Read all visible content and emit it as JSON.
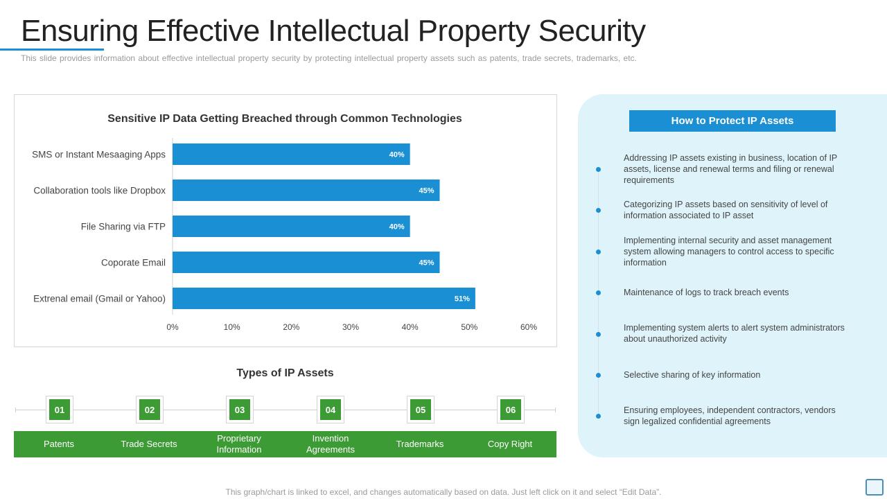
{
  "slide": {
    "title": "Ensuring Effective Intellectual Property Security",
    "subtitle": "This slide provides  information  about  effective  intellectual  property  security  by protecting  intellectual  property  assets such as patents,  trade  secrets,  trademarks,  etc.",
    "footer": "This graph/chart is linked to excel, and changes automatically based on data. Just left click on it and select “Edit Data”."
  },
  "chart_data": {
    "type": "bar",
    "orientation": "horizontal",
    "title": "Sensitive IP Data Getting Breached through Common Technologies",
    "categories": [
      "SMS or Instant Mesaaging Apps",
      "Collaboration tools like Dropbox",
      "File Sharing via FTP",
      "Coporate Email",
      "Extrenal email (Gmail or Yahoo)"
    ],
    "values": [
      40,
      45,
      40,
      45,
      51
    ],
    "value_labels": [
      "40%",
      "45%",
      "40%",
      "45%",
      "51%"
    ],
    "xlim": [
      0,
      60
    ],
    "xticks": [
      "0%",
      "10%",
      "20%",
      "30%",
      "40%",
      "50%",
      "60%"
    ],
    "xlabel": "",
    "ylabel": "",
    "grid": false,
    "bar_color": "#1a8fd3"
  },
  "types": {
    "title": "Types of IP Assets",
    "items": [
      {
        "number": "01",
        "label": "Patents"
      },
      {
        "number": "02",
        "label": "Trade Secrets"
      },
      {
        "number": "03",
        "label": "Proprietary Information"
      },
      {
        "number": "04",
        "label": "Invention Agreements"
      },
      {
        "number": "05",
        "label": "Trademarks"
      },
      {
        "number": "06",
        "label": "Copy Right"
      }
    ],
    "color": "#3d9b35"
  },
  "protect": {
    "title": "How to Protect IP Assets",
    "items": [
      "Addressing IP assets existing in business, location of IP assets, license and renewal terms and filing or renewal requirements",
      "Categorizing IP assets based on sensitivity of level of information associated to IP asset",
      "Implementing internal security and asset management system allowing managers to control access to specific information",
      "Maintenance of logs to track breach events",
      "Implementing system alerts to alert system administrators about unauthorized activity",
      "Selective sharing of key information",
      "Ensuring employees, independent contractors, vendors sign legalized confidential agreements"
    ],
    "accent": "#1a8fd3",
    "panel_color": "#dff3fb"
  }
}
